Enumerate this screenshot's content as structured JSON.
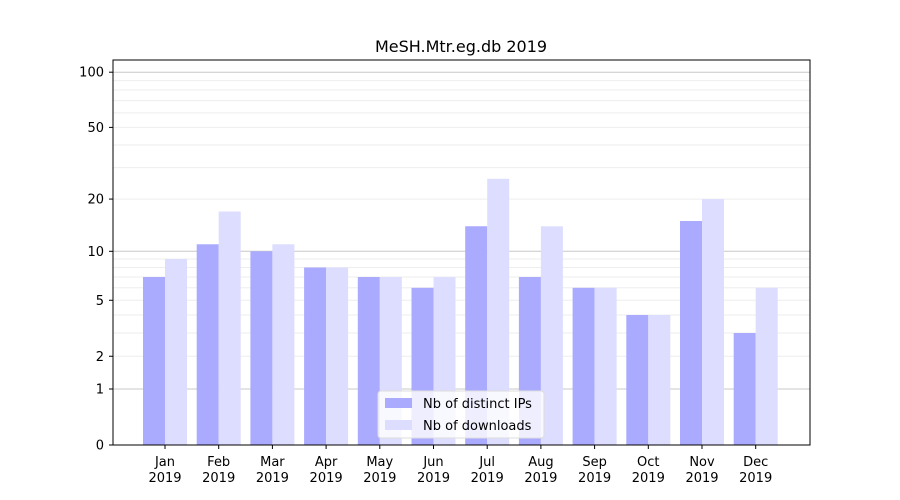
{
  "chart_data": {
    "type": "bar",
    "title": "MeSH.Mtr.eg.db 2019",
    "xlabel": "",
    "ylabel": "",
    "yscale": "log(1+y)",
    "ylim": [
      0,
      116
    ],
    "yticks": [
      0,
      1,
      2,
      5,
      10,
      20,
      50,
      100
    ],
    "grid": true,
    "legend_position": "bottom-center",
    "categories": [
      "Jan\n2019",
      "Feb\n2019",
      "Mar\n2019",
      "Apr\n2019",
      "May\n2019",
      "Jun\n2019",
      "Jul\n2019",
      "Aug\n2019",
      "Sep\n2019",
      "Oct\n2019",
      "Nov\n2019",
      "Dec\n2019"
    ],
    "series": [
      {
        "name": "Nb of distinct IPs",
        "color": "#aaaaff",
        "values": [
          7,
          11,
          10,
          8,
          7,
          6,
          14,
          7,
          6,
          4,
          15,
          3
        ]
      },
      {
        "name": "Nb of downloads",
        "color": "#ddddff",
        "values": [
          9,
          17,
          11,
          8,
          7,
          7,
          26,
          14,
          6,
          4,
          20,
          6
        ]
      }
    ]
  }
}
